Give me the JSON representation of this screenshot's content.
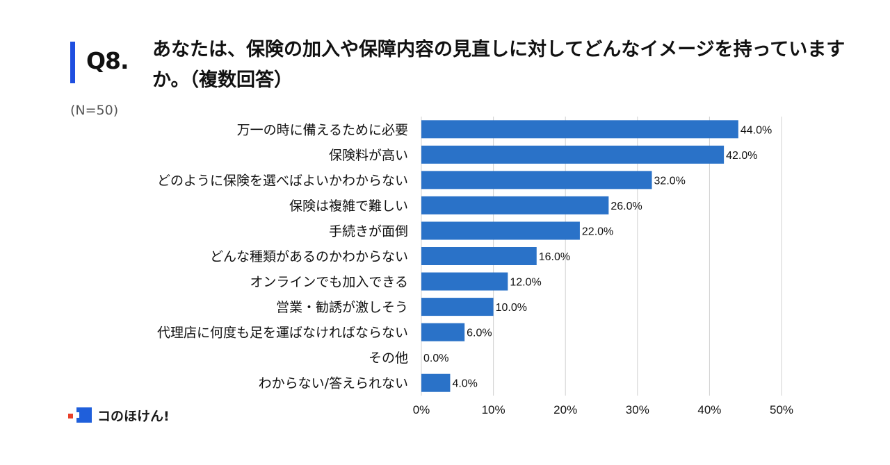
{
  "header": {
    "q_label": "Q8.",
    "title": "あなたは、保険の加入や保障内容の見直しに対してどんなイメージを持っていますか。（複数回答）",
    "n_label": "(N=50)",
    "accent_color": "#1f4fe0"
  },
  "chart_data": {
    "type": "bar",
    "orientation": "horizontal",
    "categories": [
      "万一の時に備えるために必要",
      "保険料が高い",
      "どのように保険を選べばよいかわからない",
      "保険は複雑で難しい",
      "手続きが面倒",
      "どんな種類があるのかわからない",
      "オンラインでも加入できる",
      "営業・勧誘が激しそう",
      "代理店に何度も足を運ばなければならない",
      "その他",
      "わからない/答えられない"
    ],
    "values": [
      44.0,
      42.0,
      32.0,
      26.0,
      22.0,
      16.0,
      12.0,
      10.0,
      6.0,
      0.0,
      4.0
    ],
    "value_labels": [
      "44.0%",
      "42.0%",
      "32.0%",
      "26.0%",
      "22.0%",
      "16.0%",
      "12.0%",
      "10.0%",
      "6.0%",
      "0.0%",
      "4.0%"
    ],
    "xlim": [
      0,
      50
    ],
    "xticks": [
      0,
      10,
      20,
      30,
      40,
      50
    ],
    "xtick_labels": [
      "0%",
      "10%",
      "20%",
      "30%",
      "40%",
      "50%"
    ],
    "grid": true,
    "bar_color": "#2a72c8",
    "grid_color": "#d0d0d0"
  },
  "logo": {
    "text": "コのほけん!",
    "icon": "kono-hoken-logo-icon"
  }
}
